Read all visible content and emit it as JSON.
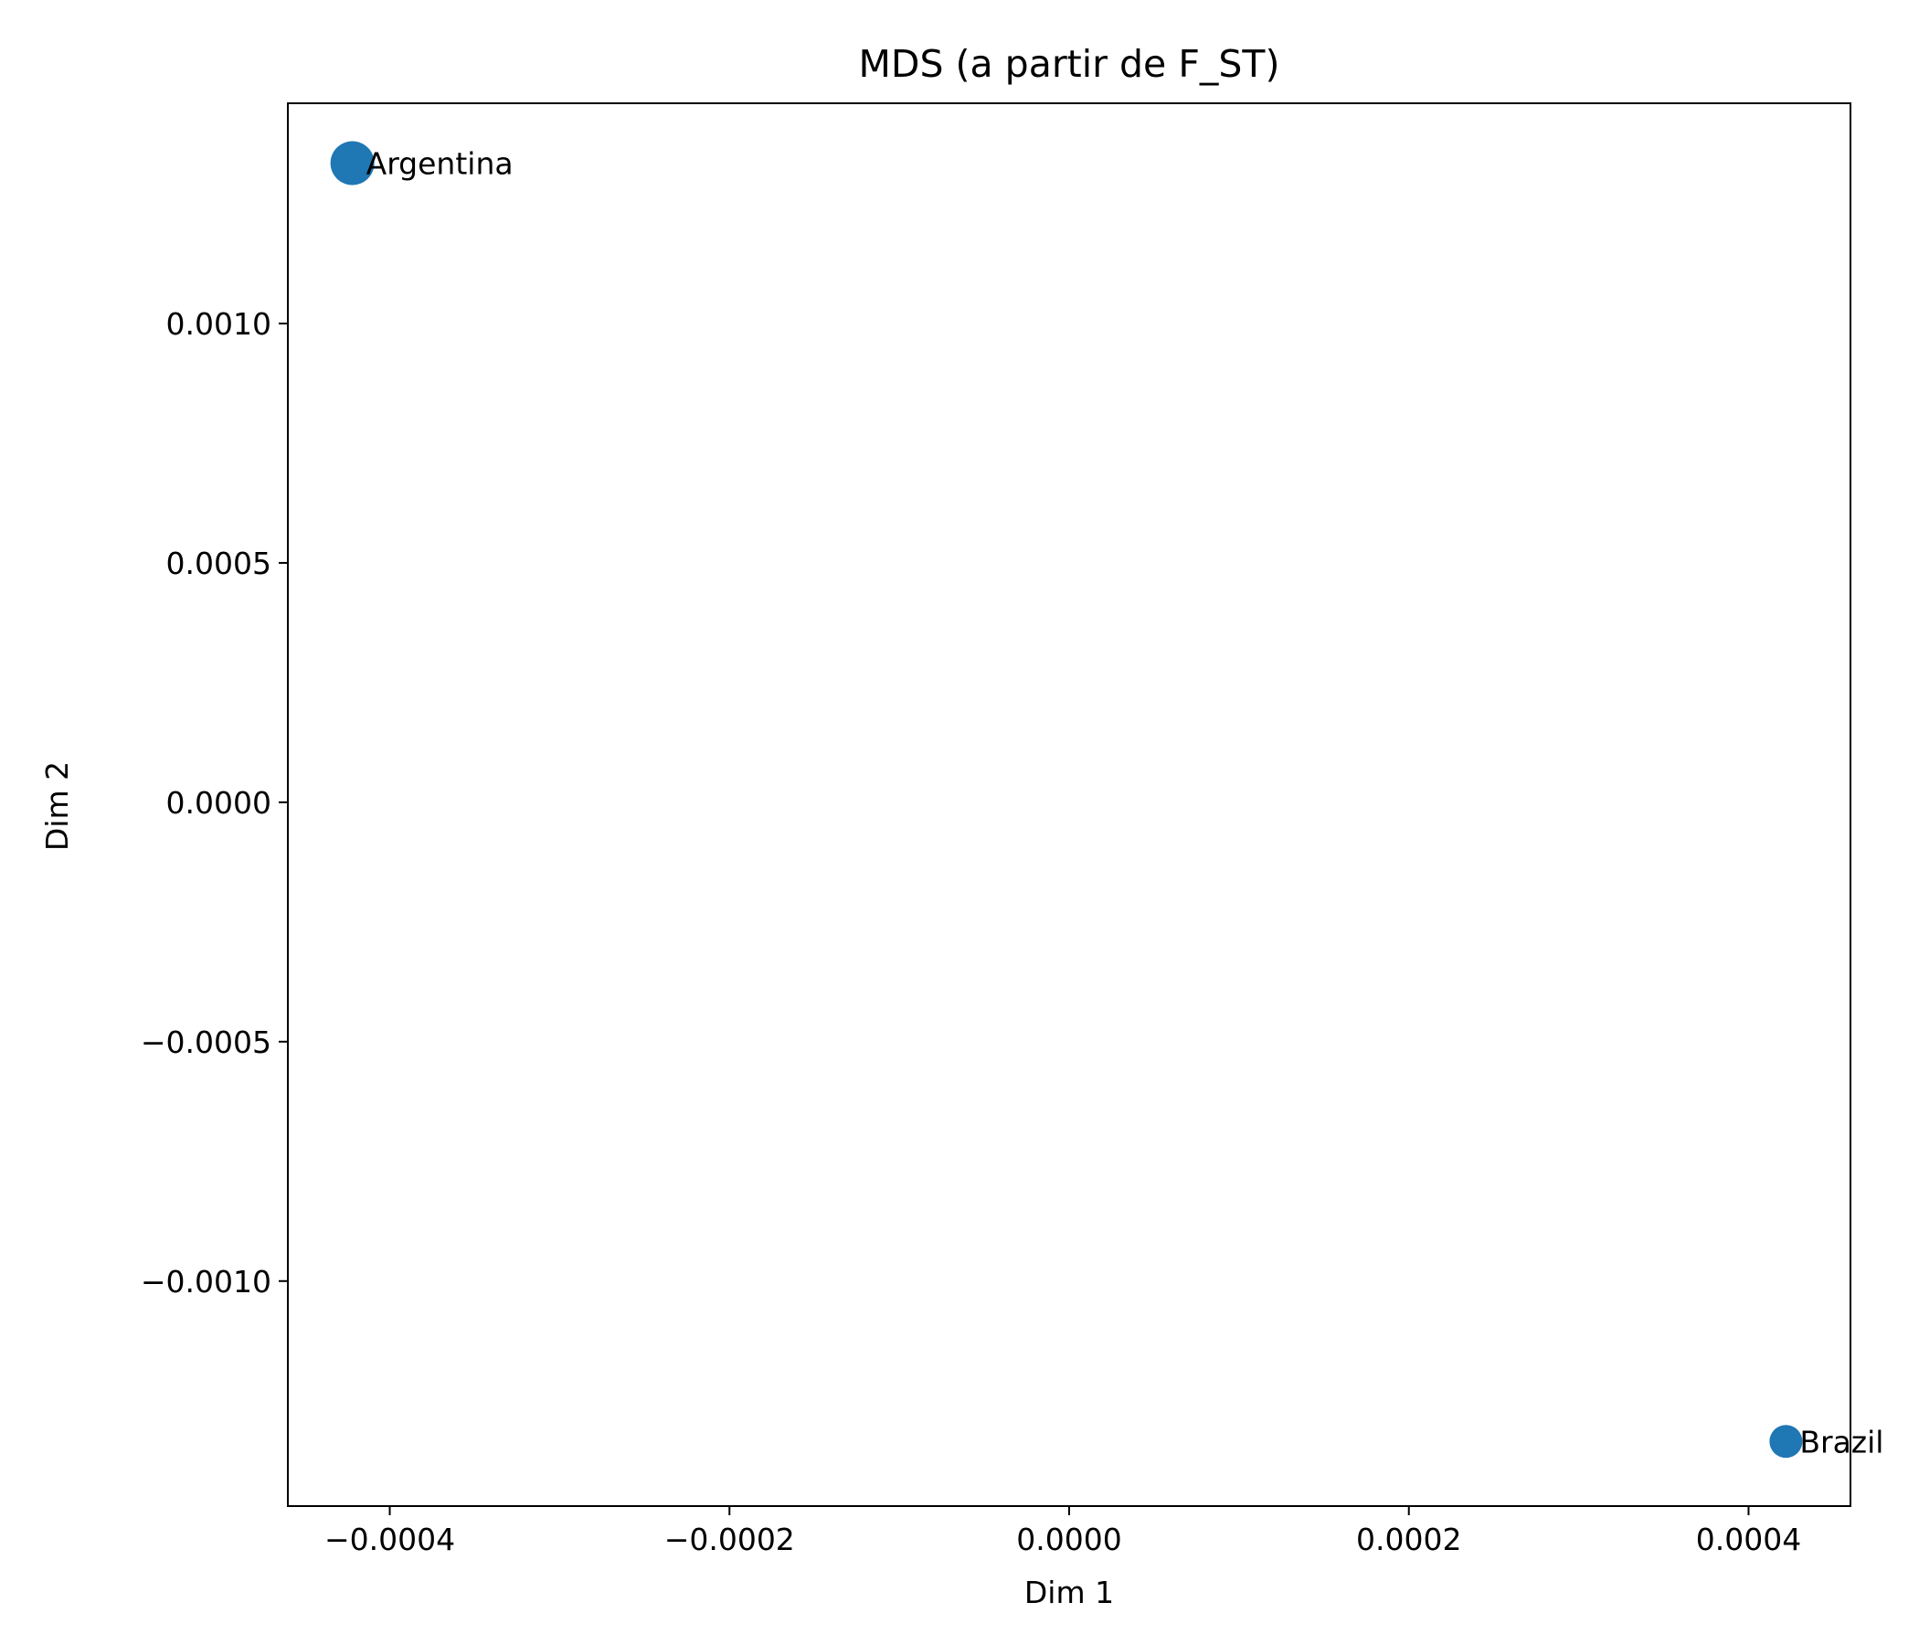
{
  "chart_data": {
    "type": "scatter",
    "title": "MDS (a partir de F_ST)",
    "xlabel": "Dim 1",
    "ylabel": "Dim 2",
    "xlim": [
      -0.00046,
      0.00046
    ],
    "ylim": [
      -0.00147,
      0.00146
    ],
    "x_ticks": [
      {
        "value": -0.0004,
        "label": "−0.0004"
      },
      {
        "value": -0.0002,
        "label": "−0.0002"
      },
      {
        "value": 0.0,
        "label": "0.0000"
      },
      {
        "value": 0.0002,
        "label": "0.0002"
      },
      {
        "value": 0.0004,
        "label": "0.0004"
      }
    ],
    "y_ticks": [
      {
        "value": 0.001,
        "label": "0.0010"
      },
      {
        "value": 0.0005,
        "label": "0.0005"
      },
      {
        "value": 0.0,
        "label": "0.0000"
      },
      {
        "value": -0.0005,
        "label": "−0.0005"
      },
      {
        "value": -0.001,
        "label": "−0.0010"
      }
    ],
    "grid": false,
    "marker_color": "#1f77b4",
    "points": [
      {
        "label": "Argentina",
        "x": -0.000422,
        "y": 0.001335,
        "marker": "large"
      },
      {
        "label": "Brazil",
        "x": 0.000422,
        "y": -0.001335,
        "marker": "small"
      }
    ]
  }
}
